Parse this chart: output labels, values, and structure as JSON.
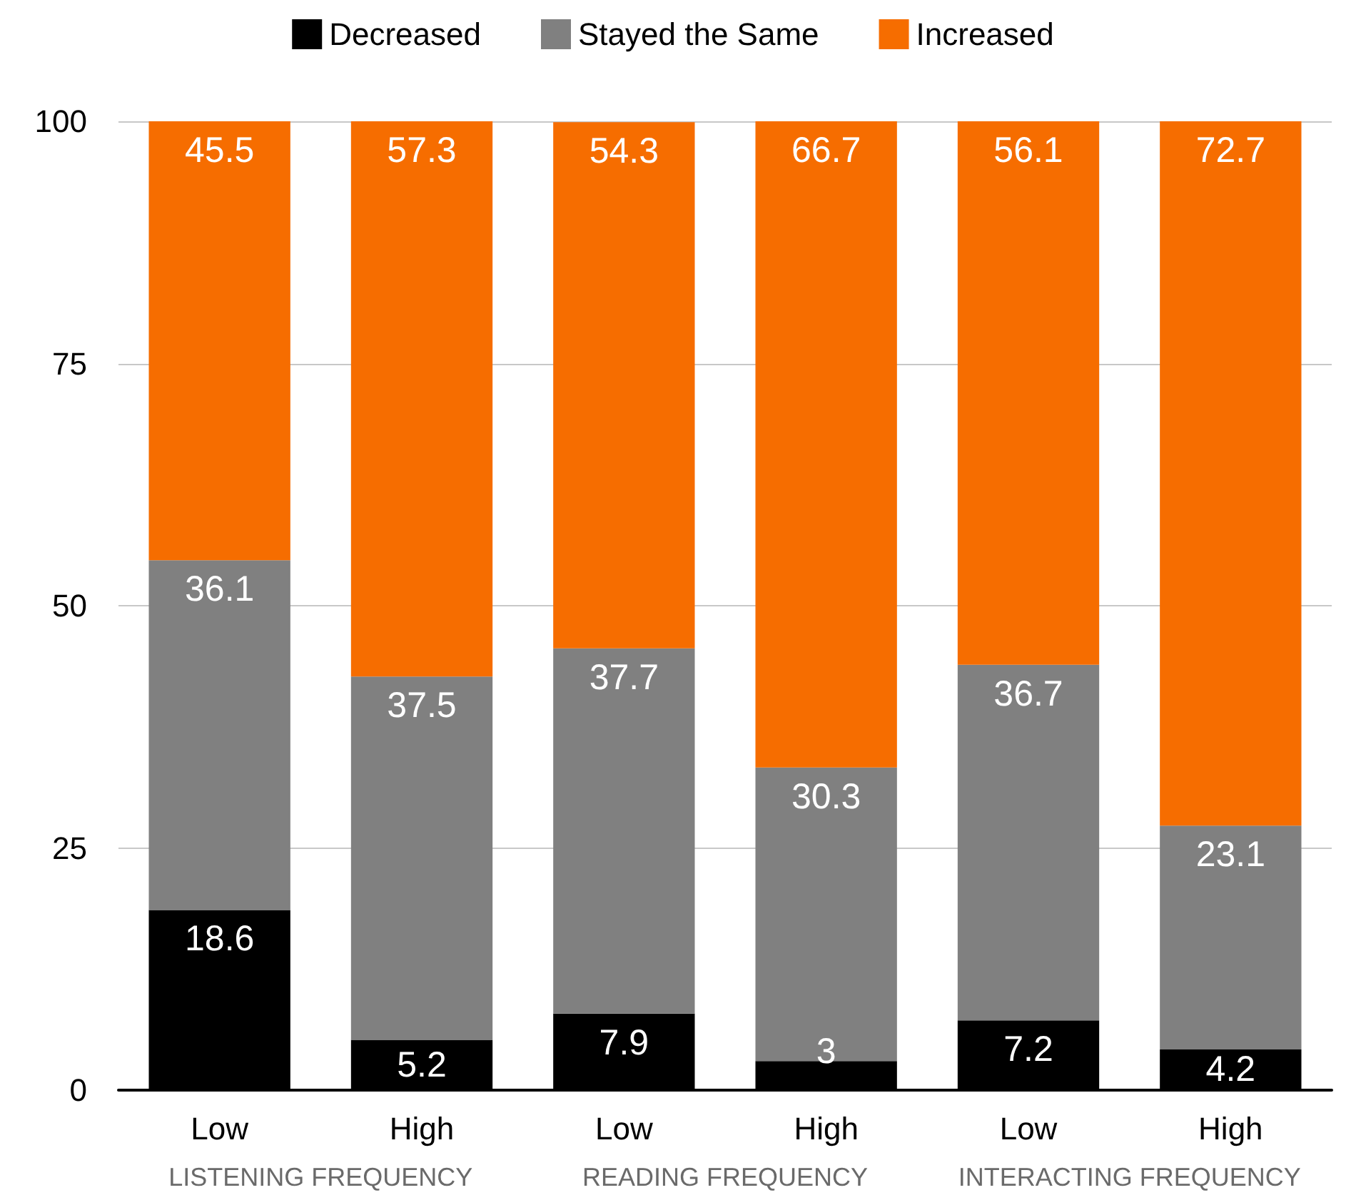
{
  "chart_data": {
    "type": "bar",
    "stacked": true,
    "categories": [
      "Low",
      "High",
      "Low",
      "High",
      "Low",
      "High"
    ],
    "series": [
      {
        "name": "Decreased",
        "color": "#000000",
        "values": [
          18.6,
          5.2,
          7.9,
          3,
          7.2,
          4.2
        ]
      },
      {
        "name": "Stayed the Same",
        "color": "#808080",
        "values": [
          36.1,
          37.5,
          37.7,
          30.3,
          36.7,
          23.1
        ]
      },
      {
        "name": "Increased",
        "color": "#f66d00",
        "values": [
          45.5,
          57.3,
          54.3,
          66.7,
          56.1,
          72.7
        ]
      }
    ],
    "ylim": [
      0,
      100
    ],
    "yticks": [
      0,
      25,
      50,
      75,
      100
    ],
    "grid": "y",
    "legend": "top",
    "data_labels": true,
    "annotations": [
      "LISTENING FREQUENCY",
      "READING FREQUENCY",
      "INTERACTING FREQUENCY"
    ]
  }
}
